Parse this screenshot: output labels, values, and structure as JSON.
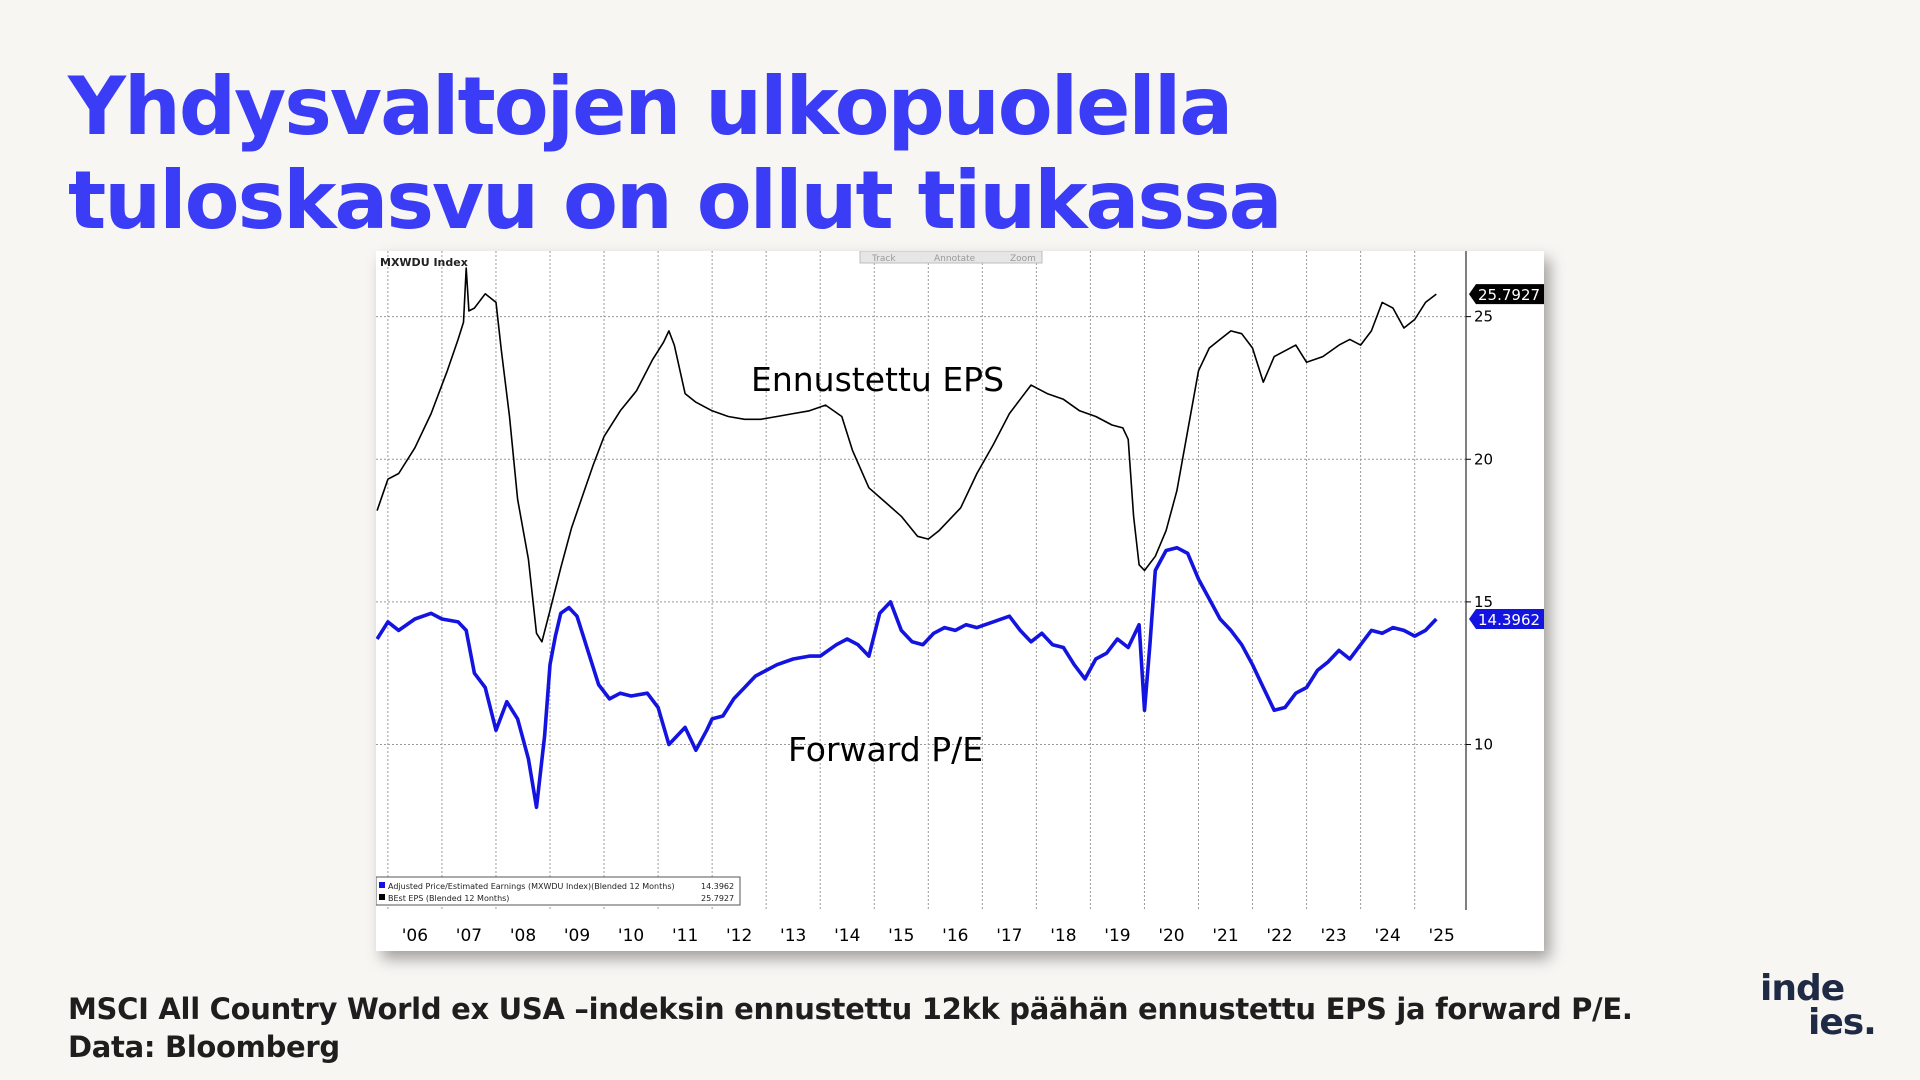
{
  "slide": {
    "title_line1": "Yhdysvaltojen ulkopuolella",
    "title_line2": "tuloskasvu on ollut tiukassa",
    "caption_line1": "MSCI All Country World ex USA –indeksin ennustettu 12kk päähän ennustettu EPS ja forward P/E.",
    "caption_line2": "Data: Bloomberg",
    "logo_line1": "inde",
    "logo_line2": "ies."
  },
  "chart_data": {
    "type": "line",
    "title": "MXWDU Index",
    "toolbar": [
      "Track",
      "Annotate",
      "Zoom"
    ],
    "annotations": [
      "Ennustettu EPS",
      "Forward P/E"
    ],
    "x_tick_labels": [
      "'06",
      "'07",
      "'08",
      "'09",
      "'10",
      "'11",
      "'12",
      "'13",
      "'14",
      "'15",
      "'16",
      "'17",
      "'18",
      "'19",
      "'20",
      "'21",
      "'22",
      "'23",
      "'24",
      "'25"
    ],
    "x_range": [
      2005.78,
      2025.95
    ],
    "y_ticks": [
      10,
      15,
      20,
      25
    ],
    "ylim": [
      4.2,
      27.3
    ],
    "grid": true,
    "legend_position": "bottom-left",
    "series": [
      {
        "name": "BEst EPS (Blended 12 Months)",
        "color": "#000000",
        "last_value": "25.7927",
        "x": [
          2005.8,
          2006.0,
          2006.2,
          2006.5,
          2006.8,
          2007.1,
          2007.3,
          2007.4,
          2007.45,
          2007.5,
          2007.6,
          2007.8,
          2008.0,
          2008.1,
          2008.25,
          2008.4,
          2008.6,
          2008.75,
          2008.85,
          2009.0,
          2009.2,
          2009.4,
          2009.6,
          2009.8,
          2010.0,
          2010.3,
          2010.6,
          2010.9,
          2011.1,
          2011.2,
          2011.3,
          2011.5,
          2011.7,
          2012.0,
          2012.3,
          2012.6,
          2012.9,
          2013.2,
          2013.5,
          2013.8,
          2014.1,
          2014.4,
          2014.6,
          2014.9,
          2015.2,
          2015.5,
          2015.8,
          2016.0,
          2016.2,
          2016.4,
          2016.6,
          2016.9,
          2017.2,
          2017.5,
          2017.7,
          2017.9,
          2018.2,
          2018.5,
          2018.8,
          2019.1,
          2019.4,
          2019.6,
          2019.7,
          2019.8,
          2019.9,
          2020.0,
          2020.2,
          2020.4,
          2020.6,
          2020.8,
          2021.0,
          2021.2,
          2021.4,
          2021.6,
          2021.8,
          2022.0,
          2022.2,
          2022.4,
          2022.6,
          2022.8,
          2023.0,
          2023.3,
          2023.6,
          2023.8,
          2024.0,
          2024.2,
          2024.4,
          2024.6,
          2024.8,
          2025.0,
          2025.2,
          2025.4
        ],
        "y": [
          18.2,
          19.3,
          19.5,
          20.4,
          21.6,
          23.1,
          24.2,
          24.8,
          26.7,
          25.2,
          25.3,
          25.8,
          25.5,
          23.8,
          21.5,
          18.6,
          16.5,
          13.9,
          13.6,
          14.7,
          16.2,
          17.6,
          18.7,
          19.8,
          20.8,
          21.7,
          22.4,
          23.5,
          24.1,
          24.5,
          24.0,
          22.3,
          22.0,
          21.7,
          21.5,
          21.4,
          21.4,
          21.5,
          21.6,
          21.7,
          21.9,
          21.5,
          20.3,
          19.0,
          18.5,
          18.0,
          17.3,
          17.2,
          17.5,
          17.9,
          18.3,
          19.5,
          20.5,
          21.6,
          22.1,
          22.6,
          22.3,
          22.1,
          21.7,
          21.5,
          21.2,
          21.1,
          20.7,
          18.0,
          16.3,
          16.1,
          16.6,
          17.5,
          18.9,
          21.0,
          23.1,
          23.9,
          24.2,
          24.5,
          24.4,
          23.9,
          22.7,
          23.6,
          23.8,
          24.0,
          23.4,
          23.6,
          24.0,
          24.2,
          24.0,
          24.5,
          25.5,
          25.3,
          24.6,
          24.9,
          25.5,
          25.79
        ]
      },
      {
        "name": "Adjusted Price/Estimated Earnings (MXWDU Index)(Blended 12 Months)",
        "color": "#1414e0",
        "last_value": "14.3962",
        "x": [
          2005.8,
          2006.0,
          2006.2,
          2006.5,
          2006.8,
          2007.0,
          2007.3,
          2007.45,
          2007.6,
          2007.8,
          2008.0,
          2008.2,
          2008.4,
          2008.6,
          2008.75,
          2008.9,
          2009.0,
          2009.1,
          2009.2,
          2009.35,
          2009.5,
          2009.7,
          2009.9,
          2010.1,
          2010.3,
          2010.5,
          2010.8,
          2011.0,
          2011.2,
          2011.5,
          2011.7,
          2011.9,
          2012.0,
          2012.2,
          2012.4,
          2012.6,
          2012.8,
          2013.0,
          2013.2,
          2013.5,
          2013.8,
          2014.0,
          2014.3,
          2014.5,
          2014.7,
          2014.9,
          2015.1,
          2015.3,
          2015.5,
          2015.7,
          2015.9,
          2016.1,
          2016.3,
          2016.5,
          2016.7,
          2016.9,
          2017.2,
          2017.5,
          2017.7,
          2017.9,
          2018.1,
          2018.3,
          2018.5,
          2018.7,
          2018.9,
          2019.1,
          2019.3,
          2019.5,
          2019.7,
          2019.9,
          2020.0,
          2020.1,
          2020.2,
          2020.4,
          2020.6,
          2020.8,
          2021.0,
          2021.2,
          2021.4,
          2021.6,
          2021.8,
          2022.0,
          2022.2,
          2022.4,
          2022.6,
          2022.8,
          2023.0,
          2023.2,
          2023.4,
          2023.6,
          2023.8,
          2024.0,
          2024.2,
          2024.4,
          2024.6,
          2024.8,
          2025.0,
          2025.2,
          2025.4
        ],
        "y": [
          13.7,
          14.3,
          14.0,
          14.4,
          14.6,
          14.4,
          14.3,
          14.0,
          12.5,
          12.0,
          10.5,
          11.5,
          10.9,
          9.5,
          7.8,
          10.3,
          12.8,
          13.8,
          14.6,
          14.8,
          14.5,
          13.3,
          12.1,
          11.6,
          11.8,
          11.7,
          11.8,
          11.3,
          10.0,
          10.6,
          9.8,
          10.5,
          10.9,
          11.0,
          11.6,
          12.0,
          12.4,
          12.6,
          12.8,
          13.0,
          13.1,
          13.1,
          13.5,
          13.7,
          13.5,
          13.1,
          14.6,
          15.0,
          14.0,
          13.6,
          13.5,
          13.9,
          14.1,
          14.0,
          14.2,
          14.1,
          14.3,
          14.5,
          14.0,
          13.6,
          13.9,
          13.5,
          13.4,
          12.8,
          12.3,
          13.0,
          13.2,
          13.7,
          13.4,
          14.2,
          11.2,
          13.5,
          16.1,
          16.8,
          16.9,
          16.7,
          15.8,
          15.1,
          14.4,
          14.0,
          13.5,
          12.8,
          12.0,
          11.2,
          11.3,
          11.8,
          12.0,
          12.6,
          12.9,
          13.3,
          13.0,
          13.5,
          14.0,
          13.9,
          14.1,
          14.0,
          13.8,
          14.0,
          14.4
        ]
      }
    ],
    "legend": [
      {
        "label": "Adjusted Price/Estimated Earnings (MXWDU Index)(Blended 12 Months)",
        "value": "14.3962",
        "color": "#1414e0"
      },
      {
        "label": "BEst EPS (Blended 12 Months)",
        "value": "25.7927",
        "color": "#000000"
      }
    ]
  }
}
